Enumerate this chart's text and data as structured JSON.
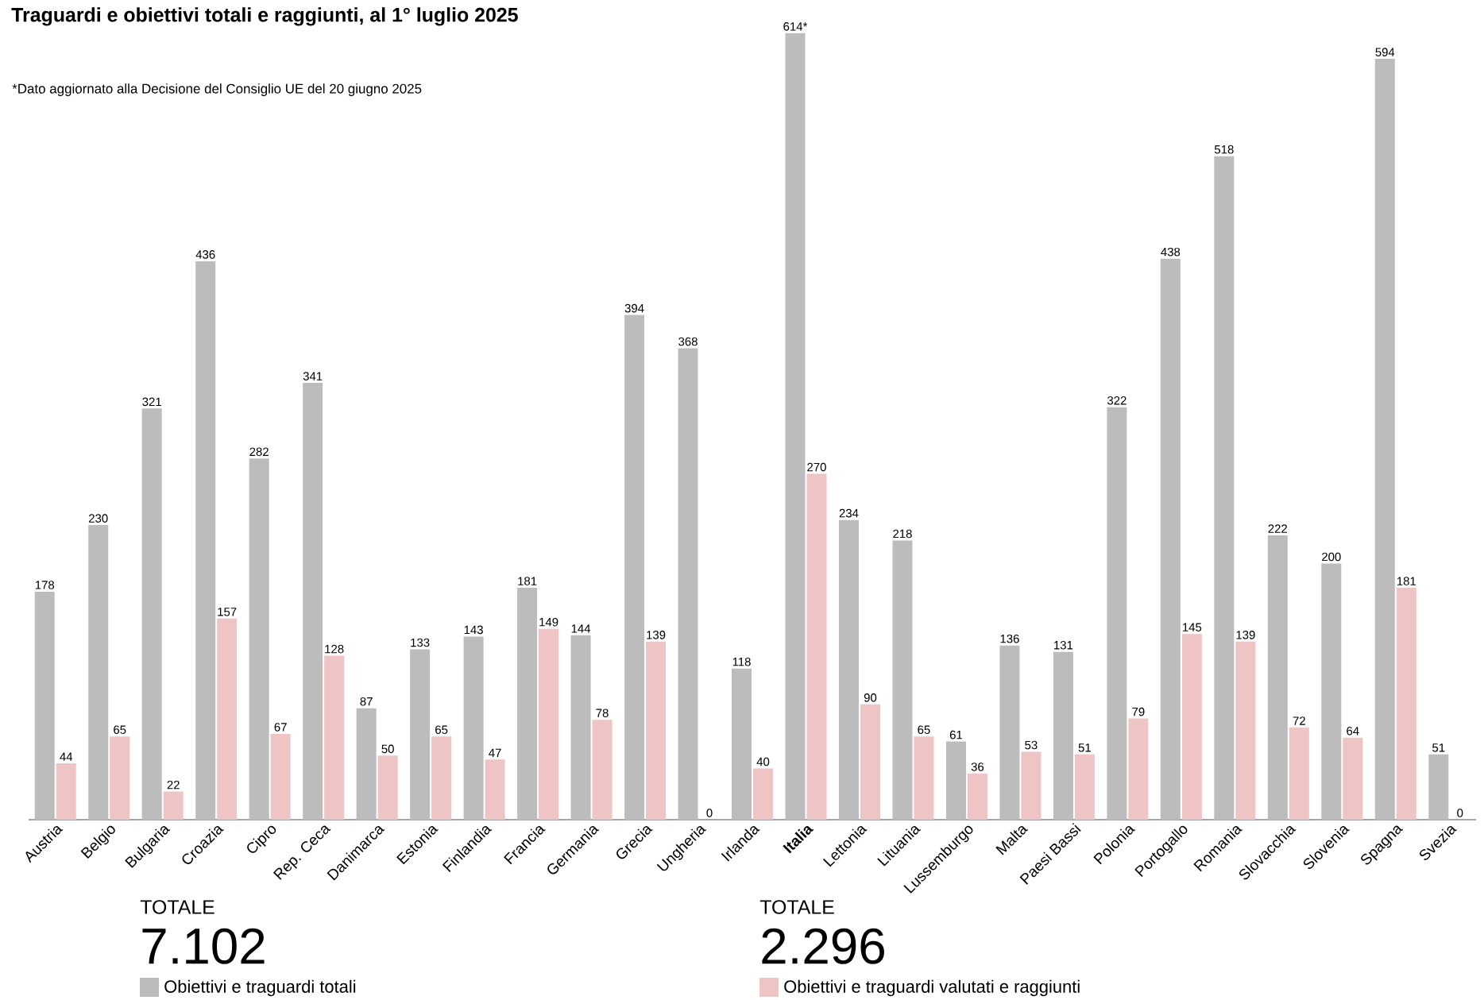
{
  "chart_data": {
    "type": "bar",
    "title": "Traguardi e obiettivi totali e raggiunti, al 1° luglio 2025",
    "categories": [
      "Austria",
      "Belgio",
      "Bulgaria",
      "Croazia",
      "Cipro",
      "Rep. Ceca",
      "Danimarca",
      "Estonia",
      "Finlandia",
      "Francia",
      "Germania",
      "Grecia",
      "Ungheria",
      "Irlanda",
      "**Italia**",
      "Lettonia",
      "Lituania",
      "Lussemburgo",
      "Malta",
      "Paesi Bassi",
      "Polonia",
      "Portogallo",
      "Romania",
      "Slovacchia",
      "Slovenia",
      "Spagna",
      "Svezia"
    ],
    "series": [
      {
        "name": "Obiettivi e traguardi totali",
        "color": "#bdbcbd",
        "values": [
          178,
          230,
          321,
          436,
          282,
          341,
          87,
          133,
          143,
          181,
          144,
          394,
          368,
          118,
          614,
          234,
          218,
          61,
          136,
          131,
          322,
          438,
          518,
          222,
          200,
          594,
          51
        ],
        "value_labels": [
          "178",
          "230",
          "321",
          "436",
          "282",
          "341",
          "87",
          "133",
          "143",
          "181",
          "144",
          "394",
          "368",
          "118",
          "614*",
          "234",
          "218",
          "61",
          "136",
          "131",
          "322",
          "438",
          "518",
          "222",
          "200",
          "594",
          "51"
        ]
      },
      {
        "name": "Obiettivi e traguardi valutati e raggiunti",
        "color": "#efc4c4",
        "values": [
          44,
          65,
          22,
          157,
          67,
          128,
          50,
          65,
          47,
          149,
          78,
          139,
          0,
          40,
          270,
          90,
          65,
          36,
          53,
          51,
          79,
          145,
          139,
          72,
          64,
          181,
          0
        ],
        "value_labels": [
          "44",
          "65",
          "22",
          "157",
          "67",
          "128",
          "50",
          "65",
          "47",
          "149",
          "78",
          "139",
          "0",
          "40",
          "270",
          "90",
          "65",
          "36",
          "53",
          "51",
          "79",
          "145",
          "139",
          "72",
          "64",
          "181",
          "0"
        ]
      }
    ],
    "legend": "bottom",
    "annotations": [
      "*Dato aggiornato alla Decisione del Consiglio UE del 20 giugno 2025",
      "TOTALE",
      "7.102",
      "TOTALE",
      "2.296"
    ]
  }
}
